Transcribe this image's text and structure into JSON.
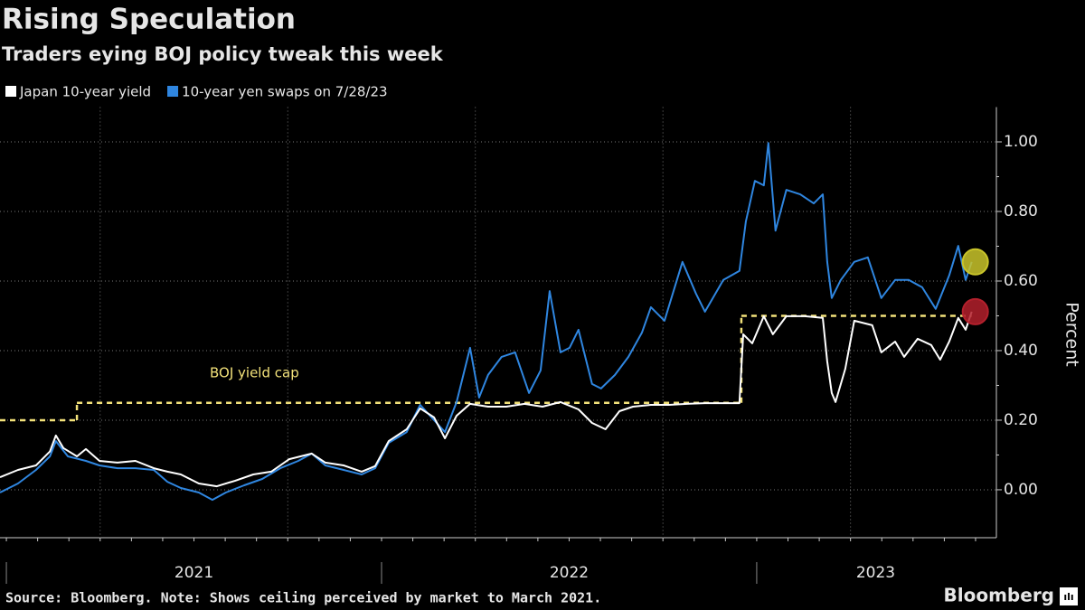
{
  "chart_data": {
    "type": "line",
    "title": "Rising Speculation",
    "subtitle": "Traders eying BOJ policy tweak this week",
    "y_label": "Percent",
    "note": "Source: Bloomberg. Note: Shows ceiling perceived by market to March 2021.",
    "brand": "Bloomberg",
    "xlim": [
      2020.983,
      2023.634
    ],
    "xticks": [
      {
        "value": 2021,
        "label": "2021"
      },
      {
        "value": 2022,
        "label": "2022"
      },
      {
        "value": 2023,
        "label": "2023"
      }
    ],
    "ylim": [
      -0.13,
      1.1
    ],
    "yticks": [
      {
        "value": 0,
        "label": "0.00"
      },
      {
        "value": 0.2,
        "label": "0.20"
      },
      {
        "value": 0.4,
        "label": "0.40"
      },
      {
        "value": 0.6,
        "label": "0.60"
      },
      {
        "value": 0.8,
        "label": "0.80"
      },
      {
        "value": 1,
        "label": "1.00"
      }
    ],
    "grid": true,
    "legend": "top-left",
    "series": [
      {
        "name": "Japan 10-year yield",
        "color": "#ffffff",
        "highlight_color": "#b3202c",
        "x": [
          2020.983,
          2021.031,
          2021.079,
          2021.116,
          2021.132,
          2021.152,
          2021.188,
          2021.212,
          2021.248,
          2021.296,
          2021.344,
          2021.393,
          2021.429,
          2021.465,
          2021.513,
          2021.561,
          2021.61,
          2021.658,
          2021.706,
          2021.754,
          2021.814,
          2021.85,
          2021.899,
          2021.947,
          2021.983,
          2022.019,
          2022.067,
          2022.103,
          2022.14,
          2022.169,
          2022.2,
          2022.236,
          2022.284,
          2022.332,
          2022.381,
          2022.429,
          2022.477,
          2022.525,
          2022.561,
          2022.597,
          2022.634,
          2022.67,
          2022.718,
          2022.766,
          2022.814,
          2022.862,
          2022.911,
          2022.954,
          2022.964,
          2022.988,
          2023.019,
          2023.043,
          2023.079,
          2023.128,
          2023.176,
          2023.188,
          2023.2,
          2023.21,
          2023.236,
          2023.26,
          2023.308,
          2023.332,
          2023.369,
          2023.393,
          2023.429,
          2023.465,
          2023.489,
          2023.513,
          2023.537,
          2023.557,
          2023.573
        ],
        "values": [
          0.036,
          0.057,
          0.07,
          0.11,
          0.156,
          0.12,
          0.096,
          0.117,
          0.083,
          0.078,
          0.083,
          0.062,
          0.052,
          0.044,
          0.018,
          0.01,
          0.026,
          0.044,
          0.052,
          0.088,
          0.104,
          0.078,
          0.07,
          0.052,
          0.068,
          0.14,
          0.174,
          0.234,
          0.208,
          0.148,
          0.213,
          0.247,
          0.239,
          0.239,
          0.247,
          0.239,
          0.252,
          0.231,
          0.192,
          0.174,
          0.226,
          0.239,
          0.244,
          0.244,
          0.247,
          0.249,
          0.249,
          0.249,
          0.447,
          0.421,
          0.499,
          0.447,
          0.499,
          0.499,
          0.494,
          0.369,
          0.278,
          0.252,
          0.348,
          0.486,
          0.473,
          0.395,
          0.426,
          0.382,
          0.434,
          0.416,
          0.374,
          0.426,
          0.494,
          0.46,
          0.512
        ]
      },
      {
        "name": "10-year yen swaps on 7/28/23",
        "color": "#2f86e0",
        "highlight_color": "#c9c42a",
        "x": [
          2020.983,
          2021.031,
          2021.079,
          2021.116,
          2021.132,
          2021.164,
          2021.212,
          2021.248,
          2021.296,
          2021.344,
          2021.393,
          2021.429,
          2021.465,
          2021.513,
          2021.549,
          2021.585,
          2021.634,
          2021.682,
          2021.73,
          2021.778,
          2021.814,
          2021.85,
          2021.899,
          2021.947,
          2021.983,
          2022.019,
          2022.067,
          2022.103,
          2022.14,
          2022.169,
          2022.2,
          2022.236,
          2022.26,
          2022.284,
          2022.32,
          2022.356,
          2022.393,
          2022.424,
          2022.448,
          2022.477,
          2022.501,
          2022.525,
          2022.561,
          2022.585,
          2022.622,
          2022.658,
          2022.694,
          2022.718,
          2022.754,
          2022.802,
          2022.838,
          2022.862,
          2022.911,
          2022.954,
          2022.971,
          2022.995,
          2023.019,
          2023.031,
          2023.05,
          2023.079,
          2023.116,
          2023.152,
          2023.176,
          2023.188,
          2023.2,
          2023.224,
          2023.26,
          2023.296,
          2023.332,
          2023.369,
          2023.405,
          2023.441,
          2023.477,
          2023.513,
          2023.537,
          2023.557,
          2023.573
        ],
        "values": [
          -0.008,
          0.018,
          0.057,
          0.096,
          0.14,
          0.096,
          0.083,
          0.07,
          0.062,
          0.062,
          0.057,
          0.023,
          0.005,
          -0.008,
          -0.029,
          -0.008,
          0.013,
          0.031,
          0.062,
          0.083,
          0.104,
          0.07,
          0.057,
          0.044,
          0.062,
          0.135,
          0.166,
          0.244,
          0.2,
          0.166,
          0.252,
          0.408,
          0.265,
          0.33,
          0.382,
          0.395,
          0.278,
          0.343,
          0.571,
          0.395,
          0.408,
          0.46,
          0.304,
          0.291,
          0.33,
          0.382,
          0.452,
          0.525,
          0.486,
          0.655,
          0.564,
          0.512,
          0.603,
          0.629,
          0.771,
          0.888,
          0.875,
          0.997,
          0.745,
          0.862,
          0.849,
          0.823,
          0.849,
          0.655,
          0.551,
          0.603,
          0.655,
          0.668,
          0.551,
          0.603,
          0.603,
          0.582,
          0.52,
          0.616,
          0.701,
          0.603,
          0.655
        ]
      }
    ],
    "cap": {
      "label": "BOJ yield cap",
      "color": "#f3e27a",
      "x": [
        2020.983,
        2021.188,
        2022.959,
        2023.573
      ],
      "values": [
        0.2,
        0.25,
        0.5,
        0.5
      ]
    }
  }
}
